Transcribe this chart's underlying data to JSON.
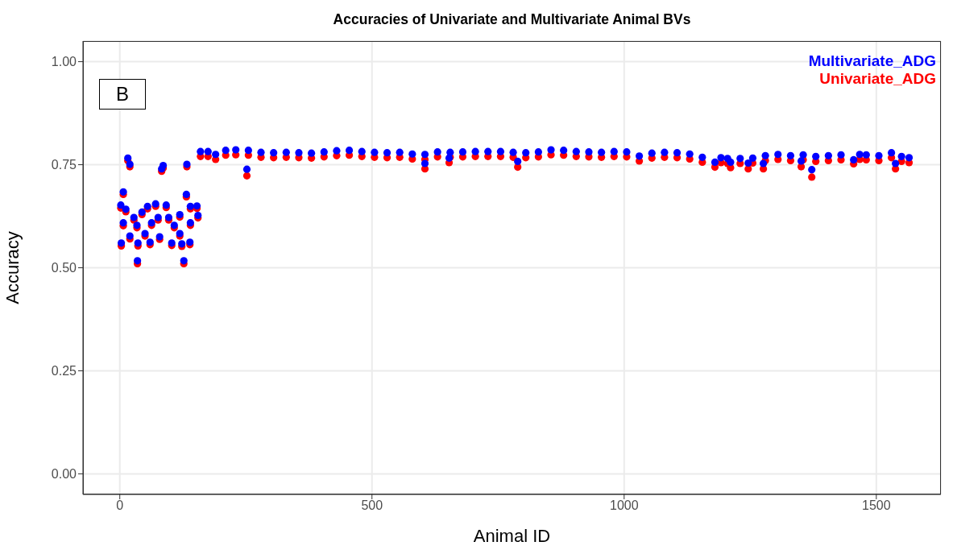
{
  "chart_data": {
    "type": "scatter",
    "title": "Accuracies of Univariate and Multivariate Animal BVs",
    "xlabel": "Animal ID",
    "ylabel": "Accuracy",
    "annotations": [
      "B"
    ],
    "x": [
      2,
      3,
      7,
      7,
      12,
      16,
      20,
      20,
      28,
      34,
      35,
      36,
      44,
      50,
      55,
      60,
      63,
      71,
      76,
      79,
      83,
      86,
      92,
      97,
      103,
      108,
      119,
      119,
      123,
      127,
      132,
      133,
      139,
      140,
      140,
      153,
      155,
      160,
      175,
      190,
      210,
      230,
      252,
      255,
      280,
      305,
      330,
      355,
      380,
      405,
      430,
      455,
      480,
      505,
      530,
      555,
      580,
      605,
      605,
      630,
      653,
      655,
      680,
      705,
      730,
      755,
      780,
      789,
      805,
      830,
      855,
      880,
      905,
      930,
      955,
      980,
      1005,
      1030,
      1055,
      1080,
      1105,
      1130,
      1155,
      1180,
      1192,
      1205,
      1211,
      1230,
      1246,
      1255,
      1276,
      1280,
      1305,
      1330,
      1351,
      1355,
      1372,
      1380,
      1405,
      1430,
      1455,
      1467,
      1480,
      1505,
      1530,
      1538,
      1550,
      1565
    ],
    "series": [
      {
        "name": "Multivariate_ADG",
        "color": "#0000ff",
        "values": [
          0.652,
          0.56,
          0.684,
          0.609,
          0.642,
          0.766,
          0.751,
          0.577,
          0.622,
          0.603,
          0.517,
          0.56,
          0.635,
          0.583,
          0.649,
          0.562,
          0.609,
          0.655,
          0.622,
          0.575,
          0.74,
          0.748,
          0.652,
          0.622,
          0.56,
          0.603,
          0.583,
          0.629,
          0.558,
          0.517,
          0.678,
          0.751,
          0.562,
          0.609,
          0.649,
          0.65,
          0.627,
          0.782,
          0.782,
          0.775,
          0.785,
          0.786,
          0.739,
          0.785,
          0.78,
          0.779,
          0.78,
          0.779,
          0.778,
          0.781,
          0.784,
          0.785,
          0.782,
          0.78,
          0.779,
          0.78,
          0.776,
          0.753,
          0.775,
          0.781,
          0.766,
          0.78,
          0.781,
          0.782,
          0.782,
          0.782,
          0.78,
          0.758,
          0.779,
          0.781,
          0.786,
          0.785,
          0.782,
          0.781,
          0.78,
          0.782,
          0.781,
          0.771,
          0.778,
          0.78,
          0.779,
          0.776,
          0.768,
          0.756,
          0.767,
          0.765,
          0.756,
          0.765,
          0.754,
          0.766,
          0.753,
          0.772,
          0.775,
          0.772,
          0.759,
          0.774,
          0.738,
          0.77,
          0.772,
          0.774,
          0.762,
          0.775,
          0.774,
          0.772,
          0.779,
          0.753,
          0.77,
          0.767
        ]
      },
      {
        "name": "Univariate_ADG",
        "color": "#ff0000",
        "values": [
          0.645,
          0.553,
          0.678,
          0.602,
          0.636,
          0.76,
          0.745,
          0.57,
          0.616,
          0.597,
          0.51,
          0.553,
          0.629,
          0.577,
          0.643,
          0.556,
          0.603,
          0.649,
          0.616,
          0.569,
          0.734,
          0.742,
          0.646,
          0.616,
          0.554,
          0.597,
          0.577,
          0.623,
          0.552,
          0.51,
          0.672,
          0.745,
          0.556,
          0.603,
          0.643,
          0.644,
          0.621,
          0.77,
          0.77,
          0.763,
          0.773,
          0.774,
          0.723,
          0.773,
          0.768,
          0.767,
          0.768,
          0.767,
          0.766,
          0.769,
          0.772,
          0.773,
          0.77,
          0.768,
          0.767,
          0.768,
          0.764,
          0.74,
          0.763,
          0.769,
          0.755,
          0.768,
          0.769,
          0.77,
          0.77,
          0.77,
          0.768,
          0.744,
          0.767,
          0.769,
          0.774,
          0.773,
          0.77,
          0.769,
          0.768,
          0.77,
          0.769,
          0.759,
          0.766,
          0.768,
          0.767,
          0.764,
          0.756,
          0.744,
          0.755,
          0.753,
          0.743,
          0.753,
          0.74,
          0.754,
          0.74,
          0.76,
          0.763,
          0.76,
          0.745,
          0.762,
          0.72,
          0.758,
          0.76,
          0.762,
          0.752,
          0.763,
          0.762,
          0.76,
          0.767,
          0.74,
          0.758,
          0.755
        ]
      }
    ],
    "xlim": [
      -73,
      1628
    ],
    "xticks": [
      0,
      500,
      1000,
      1500
    ],
    "ylim": [
      -0.05,
      1.05
    ],
    "yticks": [
      {
        "value": 0,
        "label": "0.00"
      },
      {
        "value": 0.25,
        "label": "0.25"
      },
      {
        "value": 0.5,
        "label": "0.50"
      },
      {
        "value": 0.75,
        "label": "0.75"
      },
      {
        "value": 1,
        "label": "1.00"
      }
    ],
    "grid": true,
    "legend": "top right",
    "marker": "circle"
  }
}
